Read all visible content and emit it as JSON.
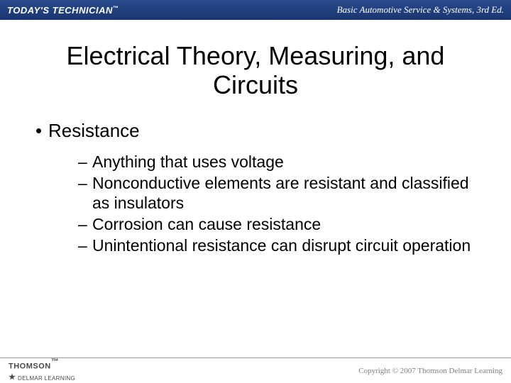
{
  "header": {
    "left_brand": "TODAY'S TECHNICIAN",
    "left_tm": "™",
    "right_text": "Basic Automotive Service & Systems, 3rd Ed."
  },
  "slide": {
    "title": "Electrical Theory, Measuring, and Circuits",
    "main_bullet": "Resistance",
    "sub_bullets": [
      "Anything that uses voltage",
      "Nonconductive elements are resistant and classified as insulators",
      "Corrosion can cause resistance",
      "Unintentional resistance can disrupt circuit operation"
    ]
  },
  "footer": {
    "logo_top": "THOMSON",
    "logo_tm": "™",
    "logo_bottom": "DELMAR LEARNING",
    "copyright": "Copyright © 2007 Thomson Delmar Learning"
  },
  "colors": {
    "header_bg_top": "#2a4b8d",
    "header_bg_bottom": "#1a3570",
    "text_main": "#000000",
    "footer_text": "#808080",
    "footer_logo": "#4a4a4a"
  }
}
